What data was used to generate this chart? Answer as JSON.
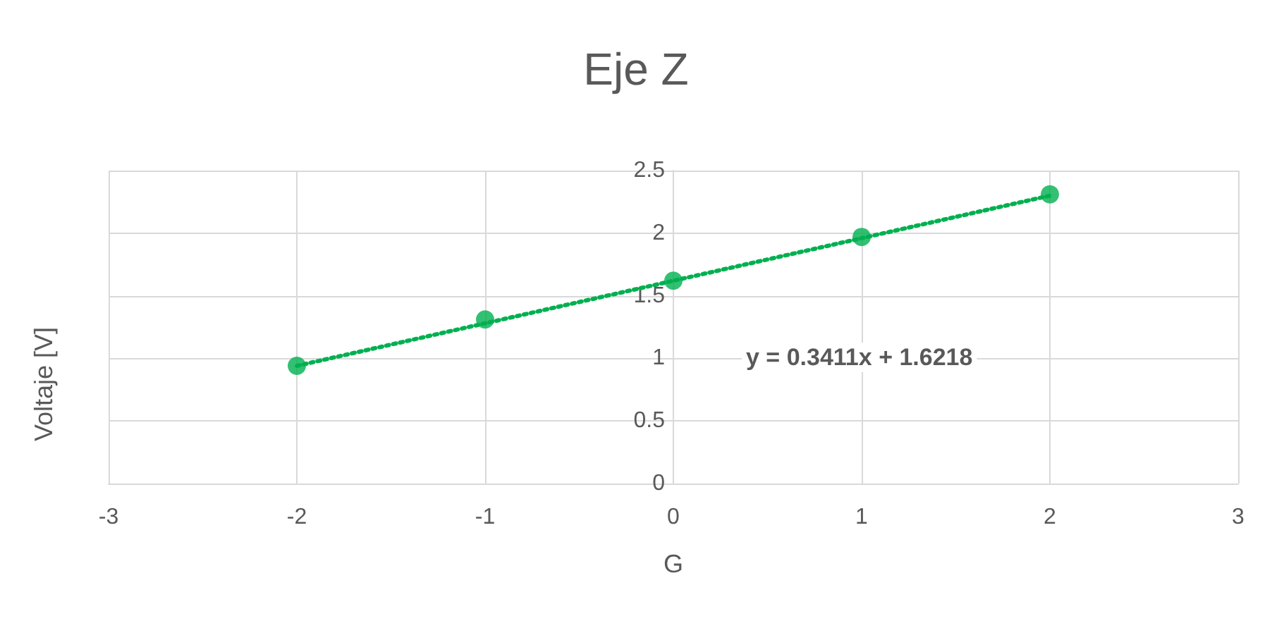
{
  "chart_data": {
    "type": "scatter",
    "title": "Eje Z",
    "xlabel": "G",
    "ylabel": "Voltaje [V]",
    "x": [
      -2,
      -1,
      0,
      1,
      2
    ],
    "series": [
      {
        "color": "#00b050",
        "marker": "circle",
        "values": [
          0.94,
          1.31,
          1.62,
          1.97,
          2.31
        ]
      },
      {
        "type": "line",
        "color": "#00b050",
        "marker": "none",
        "line_style": "dotted",
        "x": [
          -2,
          2
        ],
        "values": [
          0.94,
          2.3
        ]
      }
    ],
    "annotations": [
      "y = 0.3411x + 1.6218"
    ],
    "xlim": [
      -3,
      3
    ],
    "xticks": [
      -3,
      -2,
      -1,
      0,
      1,
      2,
      3
    ],
    "ylim": [
      0,
      2.5
    ],
    "yticks": [
      0,
      0.5,
      1,
      1.5,
      2,
      2.5
    ],
    "grid": true
  }
}
